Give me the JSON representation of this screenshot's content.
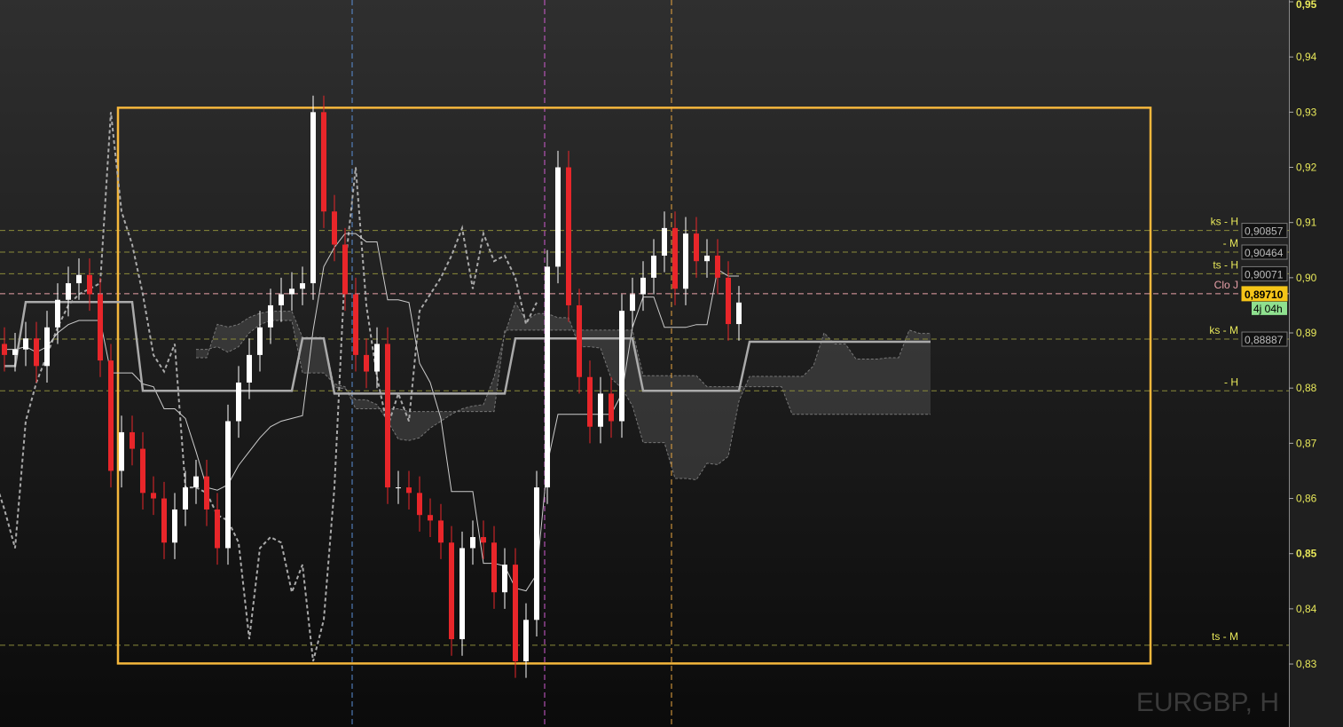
{
  "chart_data": {
    "type": "candlestick",
    "symbol": "EURGBP, H",
    "ylim": [
      0.82,
      0.95
    ],
    "y_ticks": [
      "0,95",
      "0,94",
      "0,93",
      "0,92",
      "0,91",
      "0,90",
      "0,89",
      "0,88",
      "0,87",
      "0,86",
      "0,85",
      "0,84",
      "0,83"
    ],
    "y_tick_values": [
      0.95,
      0.94,
      0.93,
      0.92,
      0.91,
      0.9,
      0.89,
      0.88,
      0.87,
      0.86,
      0.85,
      0.84,
      0.83
    ],
    "bold_ticks": [
      0.95,
      0.85
    ],
    "close": [
      0.886,
      0.887,
      0.889,
      0.884,
      0.891,
      0.896,
      0.899,
      0.9005,
      0.897,
      0.885,
      0.865,
      0.872,
      0.869,
      0.861,
      0.86,
      0.852,
      0.858,
      0.862,
      0.864,
      0.858,
      0.851,
      0.874,
      0.881,
      0.886,
      0.891,
      0.895,
      0.897,
      0.898,
      0.899,
      0.93,
      0.912,
      0.906,
      0.897,
      0.886,
      0.883,
      0.888,
      0.862,
      0.862,
      0.861,
      0.857,
      0.856,
      0.852,
      0.8345,
      0.851,
      0.853,
      0.852,
      0.843,
      0.848,
      0.8305,
      0.838,
      0.862,
      0.902,
      0.92,
      0.895,
      0.882,
      0.873,
      0.879,
      0.874,
      0.894,
      0.897,
      0.9,
      0.904,
      0.909,
      0.898,
      0.908,
      0.903,
      0.904,
      0.9,
      0.8916,
      0.8955
    ],
    "kijun": [
      0.884,
      0.884,
      0.8956,
      0.8956,
      0.8956,
      0.8956,
      0.8956,
      0.8956,
      0.8956,
      0.8956,
      0.8956,
      0.8956,
      0.8956,
      0.8795,
      0.8795,
      0.8795,
      0.8795,
      0.8795,
      0.8795,
      0.8795,
      0.8795,
      0.8795,
      0.8795,
      0.8795,
      0.8795,
      0.8795,
      0.8795,
      0.8795,
      0.889,
      0.889,
      0.889,
      0.879,
      0.879,
      0.879,
      0.879,
      0.879,
      0.879,
      0.879,
      0.879,
      0.879,
      0.879,
      0.879,
      0.879,
      0.879,
      0.879,
      0.879,
      0.879,
      0.879,
      0.889,
      0.889,
      0.889,
      0.889,
      0.889,
      0.889,
      0.889,
      0.889,
      0.889,
      0.889,
      0.889,
      0.889,
      0.8795,
      0.8795,
      0.8795,
      0.8795,
      0.8795,
      0.8795,
      0.8795,
      0.8795,
      0.8795,
      0.8795,
      0.8884,
      0.8884,
      0.8884,
      0.8884,
      0.8884,
      0.8884,
      0.8884,
      0.8884,
      0.8884,
      0.8884,
      0.8884,
      0.8884,
      0.8884,
      0.8884,
      0.8884,
      0.8884,
      0.8884,
      0.8884
    ],
    "colors": {
      "up": "#ffffff",
      "down": "#e8262a",
      "kijun": "#aaaaaa",
      "tenkan": "#cccccc",
      "chikou": "#aaaaaa",
      "cloud": "#666666",
      "box": "#f5b73c",
      "vline_blue": "#5b8fd6",
      "vline_magenta": "#d05bd0",
      "vline_orange": "#e9a640",
      "level": "#8a8a3a",
      "close_line": "#e8a0a8"
    },
    "levels": [
      {
        "label": "ks - H",
        "value": 0.90857,
        "box": "0,90857"
      },
      {
        "label": "- M",
        "value": 0.90464,
        "box": "0,90464"
      },
      {
        "label": "ts - H",
        "value": 0.90071,
        "box": "0,90071"
      },
      {
        "label": "Clo J",
        "value": 0.8971,
        "box": "0,89710",
        "current": true
      },
      {
        "label": "ks - M",
        "value": 0.88887,
        "box": "0,88887"
      },
      {
        "label": "- H",
        "value": 0.8795,
        "box": ""
      },
      {
        "label": "ts - M",
        "value": 0.8334,
        "box": ""
      }
    ],
    "countdown": "4j 04h",
    "box_range": [
      0.8301,
      0.9308
    ]
  }
}
